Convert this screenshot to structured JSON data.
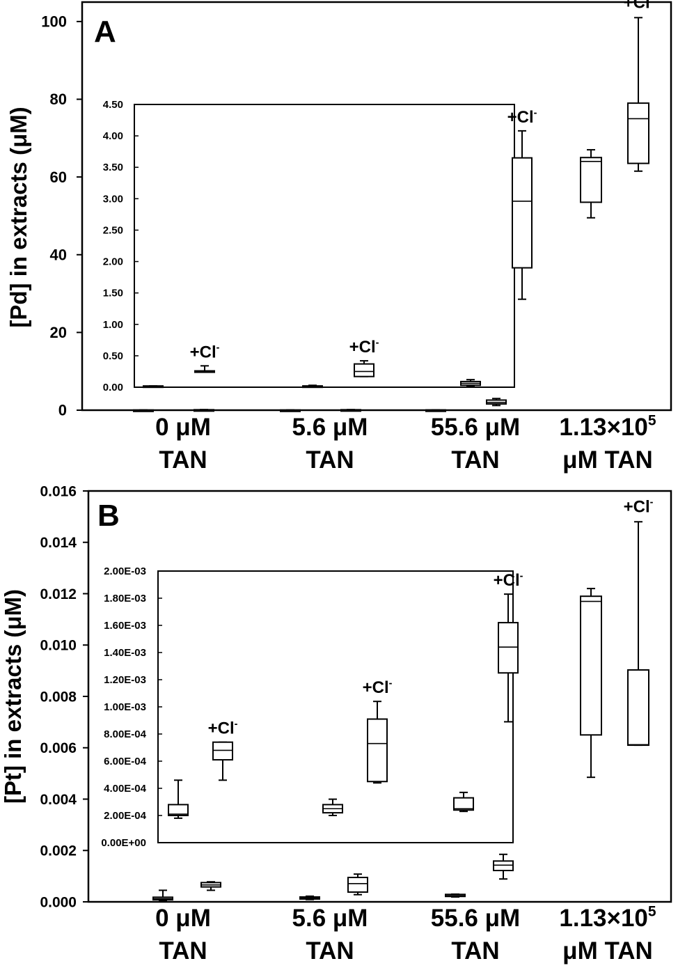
{
  "chart_data": [
    {
      "panel_label": "A",
      "type": "box",
      "ylabel": "[Pd] in extracts (μM)",
      "ylim": [
        0,
        105
      ],
      "yticks": [
        "0",
        "20",
        "40",
        "60",
        "80",
        "100"
      ],
      "ytick_values": [
        0,
        20,
        40,
        60,
        80,
        100
      ],
      "groups": [
        {
          "label_line1": "0 μM",
          "label_line2": "TAN"
        },
        {
          "label_line1": "5.6 μM",
          "label_line2": "TAN"
        },
        {
          "label_line1": "55.6 μM",
          "label_line2": "TAN"
        },
        {
          "label_line1": "1.13×10",
          "label_sup": "5",
          "label_line2": "μM TAN"
        }
      ],
      "cl_annotation": "+Cl",
      "cl_sup": "-",
      "boxes": [
        {
          "group": 0,
          "cl": false,
          "min": 0.01,
          "q1": 0.02,
          "median": 0.03,
          "q3": 0.04,
          "max": 0.05
        },
        {
          "group": 0,
          "cl": true,
          "min": 0.05,
          "q1": 0.08,
          "median": 0.1,
          "q3": 0.12,
          "max": 0.15
        },
        {
          "group": 1,
          "cl": false,
          "min": 0.01,
          "q1": 0.02,
          "median": 0.03,
          "q3": 0.04,
          "max": 0.05
        },
        {
          "group": 1,
          "cl": true,
          "min": 0.05,
          "q1": 0.08,
          "median": 0.1,
          "q3": 0.12,
          "max": 0.15
        },
        {
          "group": 2,
          "cl": false,
          "min": 0.02,
          "q1": 0.04,
          "median": 0.05,
          "q3": 0.06,
          "max": 0.08
        },
        {
          "group": 2,
          "cl": true,
          "min": 1.2,
          "q1": 1.6,
          "median": 2.0,
          "q3": 2.6,
          "max": 3.0
        },
        {
          "group": 3,
          "cl": false,
          "min": 49.5,
          "q1": 53.5,
          "median": 64.0,
          "q3": 65.0,
          "max": 67.0
        },
        {
          "group": 3,
          "cl": true,
          "min": 61.5,
          "q1": 63.5,
          "median": 75.0,
          "q3": 79.0,
          "max": 101.0
        }
      ],
      "inset": {
        "ylim": [
          0,
          4.5
        ],
        "yticks": [
          "0.00",
          "0.50",
          "1.00",
          "1.50",
          "2.00",
          "2.50",
          "3.00",
          "3.50",
          "4.00",
          "4.50"
        ],
        "ytick_values": [
          0,
          0.5,
          1.0,
          1.5,
          2.0,
          2.5,
          3.0,
          3.5,
          4.0,
          4.5
        ],
        "boxes": [
          {
            "group": 0,
            "cl": false,
            "min": 0.01,
            "q1": 0.01,
            "median": 0.01,
            "q3": 0.02,
            "max": 0.02
          },
          {
            "group": 0,
            "cl": true,
            "min": 0.24,
            "q1": 0.24,
            "median": 0.25,
            "q3": 0.26,
            "max": 0.34
          },
          {
            "group": 1,
            "cl": false,
            "min": 0.01,
            "q1": 0.01,
            "median": 0.02,
            "q3": 0.02,
            "max": 0.03
          },
          {
            "group": 1,
            "cl": true,
            "min": 0.17,
            "q1": 0.17,
            "median": 0.25,
            "q3": 0.37,
            "max": 0.42
          },
          {
            "group": 2,
            "cl": false,
            "min": 0.02,
            "q1": 0.03,
            "median": 0.06,
            "q3": 0.09,
            "max": 0.12
          },
          {
            "group": 2,
            "cl": true,
            "min": 1.4,
            "q1": 1.9,
            "median": 2.96,
            "q3": 3.65,
            "max": 4.08
          }
        ]
      }
    },
    {
      "panel_label": "B",
      "type": "box",
      "ylabel": "[Pt] in extracts (μM)",
      "ylim": [
        0,
        0.016
      ],
      "yticks": [
        "0.000",
        "0.002",
        "0.004",
        "0.006",
        "0.008",
        "0.010",
        "0.012",
        "0.014",
        "0.016"
      ],
      "ytick_values": [
        0,
        0.002,
        0.004,
        0.006,
        0.008,
        0.01,
        0.012,
        0.014,
        0.016
      ],
      "groups": [
        {
          "label_line1": "0 μM",
          "label_line2": "TAN"
        },
        {
          "label_line1": "5.6 μM",
          "label_line2": "TAN"
        },
        {
          "label_line1": "55.6 μM",
          "label_line2": "TAN"
        },
        {
          "label_line1": "1.13×10",
          "label_sup": "5",
          "label_line2": "μM TAN"
        }
      ],
      "cl_annotation": "+Cl",
      "cl_sup": "-",
      "boxes": [
        {
          "group": 0,
          "cl": false,
          "min": 5e-05,
          "q1": 8e-05,
          "median": 0.00012,
          "q3": 0.00018,
          "max": 0.00045
        },
        {
          "group": 0,
          "cl": true,
          "min": 0.00045,
          "q1": 0.00058,
          "median": 0.00066,
          "q3": 0.00075,
          "max": 0.00078
        },
        {
          "group": 1,
          "cl": false,
          "min": 9e-05,
          "q1": 0.00011,
          "median": 0.00014,
          "q3": 0.00019,
          "max": 0.00022
        },
        {
          "group": 1,
          "cl": true,
          "min": 0.00028,
          "q1": 0.00038,
          "median": 0.00071,
          "q3": 0.00095,
          "max": 0.00108
        },
        {
          "group": 2,
          "cl": false,
          "min": 0.00019,
          "q1": 0.00021,
          "median": 0.00024,
          "q3": 0.00029,
          "max": 0.0003
        },
        {
          "group": 2,
          "cl": true,
          "min": 0.00089,
          "q1": 0.00122,
          "median": 0.00143,
          "q3": 0.00159,
          "max": 0.00185
        },
        {
          "group": 3,
          "cl": false,
          "min": 0.00485,
          "q1": 0.0065,
          "median": 0.0117,
          "q3": 0.0119,
          "max": 0.0122
        },
        {
          "group": 3,
          "cl": true,
          "min": 0.0061,
          "q1": 0.0061,
          "median": 0.00612,
          "q3": 0.00903,
          "max": 0.0148
        }
      ],
      "inset": {
        "ylim": [
          0,
          0.002
        ],
        "yticks": [
          "0.00E+00",
          "2.00E-04",
          "4.00E-04",
          "6.00E-04",
          "8.00E-04",
          "1.00E-03",
          "1.20E-03",
          "1.40E-03",
          "1.60E-03",
          "1.80E-03",
          "2.00E-03"
        ],
        "ytick_values": [
          0,
          0.0002,
          0.0004,
          0.0006,
          0.0008,
          0.001,
          0.0012,
          0.0014,
          0.0016,
          0.0018,
          0.002
        ],
        "boxes": [
          {
            "group": 0,
            "cl": false,
            "min": 0.00018,
            "q1": 0.0002,
            "median": 0.00021,
            "q3": 0.00028,
            "max": 0.00046
          },
          {
            "group": 0,
            "cl": true,
            "min": 0.00046,
            "q1": 0.00061,
            "median": 0.00068,
            "q3": 0.00074,
            "max": 0.00074
          },
          {
            "group": 1,
            "cl": false,
            "min": 0.0002,
            "q1": 0.00022,
            "median": 0.00025,
            "q3": 0.00028,
            "max": 0.00032
          },
          {
            "group": 1,
            "cl": true,
            "min": 0.00044,
            "q1": 0.00045,
            "median": 0.00073,
            "q3": 0.00091,
            "max": 0.00104
          },
          {
            "group": 2,
            "cl": false,
            "min": 0.00023,
            "q1": 0.00024,
            "median": 0.00025,
            "q3": 0.00033,
            "max": 0.00037
          },
          {
            "group": 2,
            "cl": true,
            "min": 0.00089,
            "q1": 0.00125,
            "median": 0.00144,
            "q3": 0.00162,
            "max": 0.00183
          }
        ]
      }
    }
  ]
}
